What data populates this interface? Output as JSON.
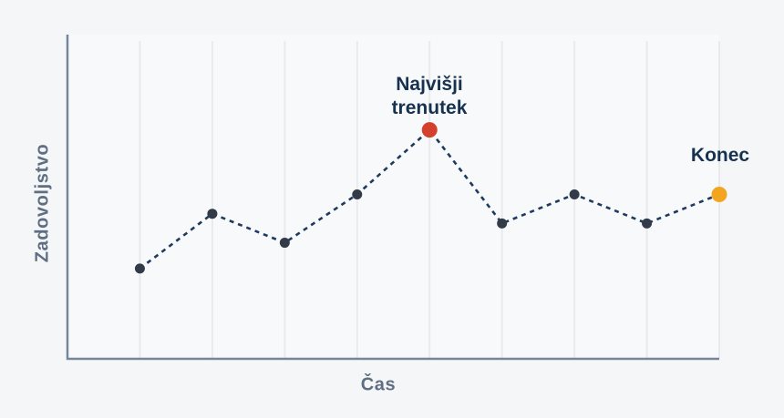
{
  "chart_data": {
    "type": "line",
    "line_style": "dashed",
    "xlabel": "Čas",
    "ylabel": "Zadovoljstvo",
    "x": [
      1,
      2,
      3,
      4,
      5,
      6,
      7,
      8,
      9
    ],
    "values": [
      28,
      45,
      36,
      51,
      71,
      42,
      51,
      42,
      51
    ],
    "ylim": [
      0,
      100
    ],
    "grid": "vertical-only",
    "legend": "none",
    "annotations": [
      {
        "text": "Najvišji trenutek",
        "point_index": 4,
        "point_color": "#d4402c"
      },
      {
        "text": "Konec",
        "point_index": 8,
        "point_color": "#f3a51f"
      }
    ],
    "colors": {
      "line": "#1e3a5f",
      "point_default": "#343b48",
      "axis": "#76859b",
      "gridline": "#e8eaee",
      "axis_label_text": "#5f6e82",
      "annotation_text": "#17324f",
      "background": "#f4f6f8",
      "plot_background": "#f8f9fb"
    }
  }
}
